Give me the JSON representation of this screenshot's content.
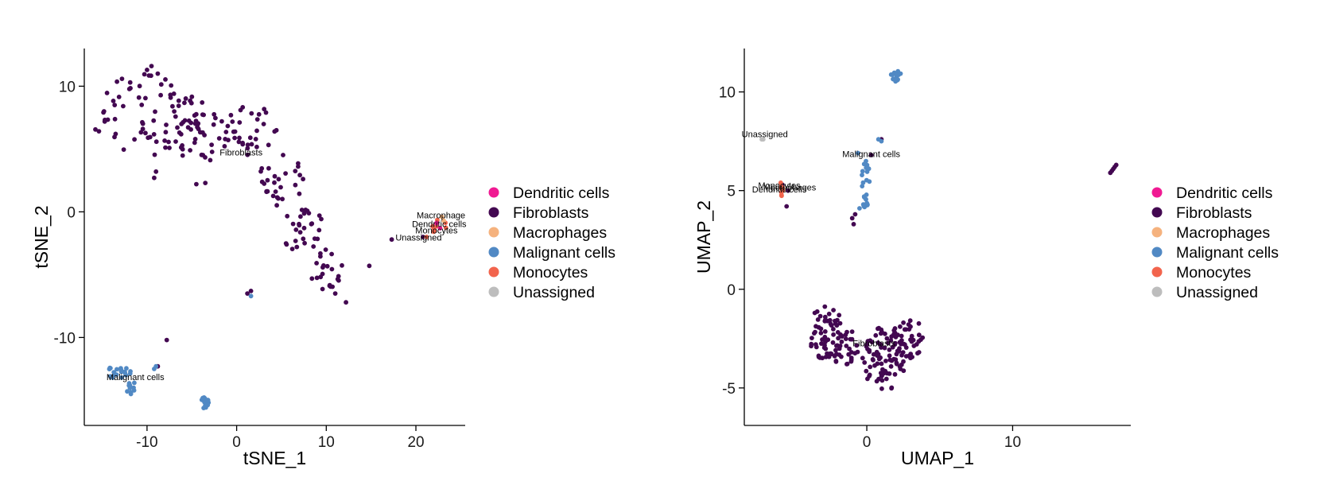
{
  "colors": {
    "Dendritic cells": "#F01A93",
    "Fibroblasts": "#430851",
    "Macrophages": "#F5B27E",
    "Malignant cells": "#5189C4",
    "Monocytes": "#F2644D",
    "Unassigned": "#BDBDBD"
  },
  "legend": {
    "items": [
      "Dendritic cells",
      "Fibroblasts",
      "Macrophages",
      "Malignant cells",
      "Monocytes",
      "Unassigned"
    ]
  },
  "chart_data": [
    {
      "type": "scatter",
      "xlabel": "tSNE_1",
      "ylabel": "tSNE_2",
      "xlim": [
        -17,
        25.5
      ],
      "ylim": [
        -17,
        13
      ],
      "xticks": [
        -10,
        0,
        10,
        20
      ],
      "yticks": [
        -10,
        0,
        10
      ],
      "grid": false,
      "legend_position": "right",
      "cluster_labels": [
        {
          "text": "Fibroblasts",
          "x": 0.5,
          "y": 4.5
        },
        {
          "text": "Macrophage",
          "x": 22.8,
          "y": -0.5
        },
        {
          "text": "Dendritic cells",
          "x": 22.6,
          "y": -1.2
        },
        {
          "text": "Monocytes",
          "x": 22.3,
          "y": -1.7
        },
        {
          "text": "Unassigned",
          "x": 20.3,
          "y": -2.3
        },
        {
          "text": "Malignant cells",
          "x": -11.3,
          "y": -13.4
        }
      ],
      "series": [
        {
          "name": "Fibroblasts",
          "clusters": [
            {
              "cx": -10,
              "cy": 7.5,
              "rx": 6,
              "ry": 3.5,
              "n": 70
            },
            {
              "cx": -4,
              "cy": 6.5,
              "rx": 4,
              "ry": 2.5,
              "n": 40
            },
            {
              "cx": 1.5,
              "cy": 6.5,
              "rx": 3,
              "ry": 2,
              "n": 30
            },
            {
              "cx": 5,
              "cy": 2.5,
              "rx": 2.5,
              "ry": 2.2,
              "n": 28
            },
            {
              "cx": 7.5,
              "cy": -1.5,
              "rx": 2.5,
              "ry": 1.8,
              "n": 28
            },
            {
              "cx": 10,
              "cy": -4.5,
              "rx": 1.8,
              "ry": 1.8,
              "n": 22
            }
          ],
          "points": [
            [
              -10,
              11.3
            ],
            [
              -9.5,
              11.6
            ],
            [
              -8.8,
              11.0
            ],
            [
              -14.8,
              8.0
            ],
            [
              -13.5,
              6.2
            ],
            [
              -9,
              3.2
            ],
            [
              -9.2,
              2.7
            ],
            [
              -4.5,
              2.2
            ],
            [
              -3.5,
              2.3
            ],
            [
              14.8,
              -4.3
            ],
            [
              12.2,
              -7.2
            ],
            [
              11,
              -6.5
            ],
            [
              1.2,
              -6.5
            ],
            [
              1.6,
              -6.3
            ],
            [
              -7.8,
              -10.2
            ],
            [
              -8.8,
              -12.3
            ],
            [
              17.3,
              -2.2
            ],
            [
              20.8,
              -2.0
            ]
          ]
        },
        {
          "name": "Malignant cells",
          "clusters": [
            {
              "cx": -13.2,
              "cy": -12.8,
              "rx": 1.4,
              "ry": 0.6,
              "n": 20
            },
            {
              "cx": -11.8,
              "cy": -13.8,
              "rx": 0.6,
              "ry": 0.7,
              "n": 8
            },
            {
              "cx": -3.6,
              "cy": -15.2,
              "rx": 0.5,
              "ry": 0.5,
              "n": 14
            }
          ],
          "points": [
            [
              -9.2,
              -12.5
            ],
            [
              -9.0,
              -12.3
            ],
            [
              1.6,
              -6.7
            ],
            [
              -11.8,
              -14.5
            ],
            [
              -11.5,
              -14.0
            ]
          ]
        },
        {
          "name": "Monocytes",
          "clusters": [
            {
              "cx": 22.6,
              "cy": -1.2,
              "rx": 0.9,
              "ry": 0.6,
              "n": 8
            }
          ],
          "points": [
            [
              21.2,
              -2.0
            ]
          ]
        },
        {
          "name": "Dendritic cells",
          "clusters": [],
          "points": [
            [
              22.3,
              -0.9
            ],
            [
              22.7,
              -1.3
            ]
          ]
        },
        {
          "name": "Macrophages",
          "clusters": [],
          "points": [
            [
              23.1,
              -0.7
            ],
            [
              22.9,
              -0.4
            ]
          ]
        },
        {
          "name": "Unassigned",
          "clusters": [],
          "points": []
        }
      ]
    },
    {
      "type": "scatter",
      "xlabel": "UMAP_1",
      "ylabel": "UMAP_2",
      "xlim": [
        -8.4,
        18.1
      ],
      "ylim": [
        -6.9,
        12.2
      ],
      "xticks": [
        0,
        10
      ],
      "yticks": [
        -5,
        0,
        5,
        10
      ],
      "grid": false,
      "legend_position": "right",
      "cluster_labels": [
        {
          "text": "Unassigned",
          "x": -7.0,
          "y": 7.7
        },
        {
          "text": "Malignant cells",
          "x": 0.3,
          "y": 6.7
        },
        {
          "text": "Monocytes",
          "x": -6.0,
          "y": 5.1
        },
        {
          "text": "Dendritic cells",
          "x": -6.0,
          "y": 4.9
        },
        {
          "text": "Macrophages",
          "x": -5.3,
          "y": 5.0
        },
        {
          "text": "Fibroblasts",
          "x": 0.5,
          "y": -2.9
        }
      ],
      "series": [
        {
          "name": "Fibroblasts",
          "clusters": [
            {
              "cx": -2.8,
              "cy": -2.2,
              "rx": 1.2,
              "ry": 1.4,
              "n": 60
            },
            {
              "cx": -1.5,
              "cy": -3.0,
              "rx": 1.0,
              "ry": 1.0,
              "n": 30
            },
            {
              "cx": 1.2,
              "cy": -3.5,
              "rx": 1.6,
              "ry": 1.6,
              "n": 80
            },
            {
              "cx": 2.8,
              "cy": -2.5,
              "rx": 1.2,
              "ry": 1.0,
              "n": 40
            }
          ],
          "points": [
            [
              -0.8,
              3.8
            ],
            [
              -1.0,
              3.6
            ],
            [
              -0.9,
              3.3
            ],
            [
              0.3,
              6.8
            ],
            [
              1.0,
              7.6
            ],
            [
              16.8,
              6.0
            ],
            [
              16.9,
              6.1
            ],
            [
              17.0,
              6.2
            ],
            [
              17.1,
              6.3
            ],
            [
              16.7,
              5.9
            ],
            [
              -5.5,
              4.2
            ],
            [
              -5.8,
              5.3
            ],
            [
              -5.4,
              5.0
            ]
          ]
        },
        {
          "name": "Malignant cells",
          "clusters": [
            {
              "cx": 2.0,
              "cy": 10.8,
              "rx": 0.35,
              "ry": 0.3,
              "n": 14
            },
            {
              "cx": -0.1,
              "cy": 5.3,
              "rx": 0.3,
              "ry": 1.4,
              "n": 22
            }
          ],
          "points": [
            [
              1.0,
              7.5
            ],
            [
              -0.6,
              6.9
            ],
            [
              -0.5,
              4.1
            ],
            [
              -0.2,
              4.2
            ],
            [
              0.8,
              7.6
            ]
          ]
        },
        {
          "name": "Monocytes",
          "clusters": [
            {
              "cx": -5.8,
              "cy": 4.9,
              "rx": 0.25,
              "ry": 0.35,
              "n": 8
            }
          ],
          "points": [
            [
              -5.9,
              5.4
            ]
          ]
        },
        {
          "name": "Dendritic cells",
          "clusters": [],
          "points": []
        },
        {
          "name": "Macrophages",
          "clusters": [],
          "points": []
        },
        {
          "name": "Unassigned",
          "clusters": [],
          "points": [
            [
              -7.2,
              7.6
            ],
            [
              -7.1,
              7.6
            ]
          ]
        }
      ]
    }
  ]
}
